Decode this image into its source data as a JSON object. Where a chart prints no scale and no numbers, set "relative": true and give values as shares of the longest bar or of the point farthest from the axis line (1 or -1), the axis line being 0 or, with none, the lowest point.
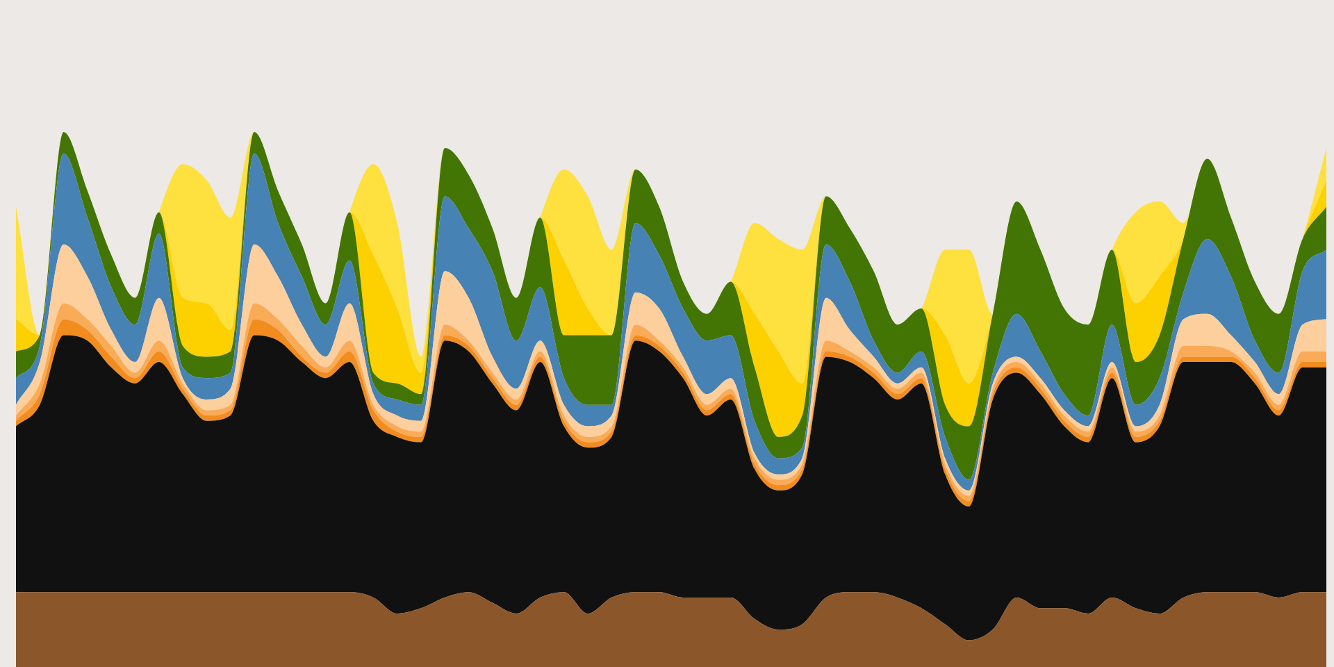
{
  "chart_data": {
    "type": "area",
    "stacked": true,
    "relative": true,
    "categories": [
      null,
      null,
      null,
      null,
      null,
      null,
      null,
      null,
      null,
      null,
      null,
      null,
      null,
      null,
      null,
      null,
      null,
      null,
      null,
      null,
      null,
      null,
      null,
      null,
      null,
      null,
      null,
      null,
      null,
      null,
      null,
      null,
      null,
      null,
      null,
      null,
      null,
      null,
      null,
      null,
      null,
      null,
      null,
      null,
      null,
      null,
      null,
      null,
      null,
      null,
      null,
      null,
      null,
      null,
      null,
      null
    ],
    "series": [
      {
        "color": "#8b572a",
        "values": [
          0.14,
          0.14,
          0.14,
          0.14,
          0.14,
          0.14,
          0.14,
          0.14,
          0.14,
          0.14,
          0.14,
          0.14,
          0.14,
          0.14,
          0.14,
          0.13,
          0.1,
          0.11,
          0.13,
          0.14,
          0.12,
          0.1,
          0.13,
          0.14,
          0.1,
          0.13,
          0.14,
          0.14,
          0.13,
          0.13,
          0.13,
          0.09,
          0.07,
          0.08,
          0.13,
          0.14,
          0.14,
          0.13,
          0.11,
          0.08,
          0.05,
          0.07,
          0.13,
          0.11,
          0.11,
          0.1,
          0.13,
          0.11,
          0.1,
          0.13,
          0.14,
          0.14,
          0.14,
          0.13,
          0.14,
          0.14
        ]
      },
      {
        "color": "#111111",
        "values": [
          0.31,
          0.35,
          0.48,
          0.47,
          0.42,
          0.39,
          0.43,
          0.37,
          0.32,
          0.33,
          0.48,
          0.47,
          0.43,
          0.4,
          0.43,
          0.33,
          0.33,
          0.31,
          0.48,
          0.45,
          0.41,
          0.38,
          0.44,
          0.31,
          0.31,
          0.3,
          0.47,
          0.45,
          0.41,
          0.34,
          0.37,
          0.28,
          0.26,
          0.28,
          0.45,
          0.43,
          0.4,
          0.37,
          0.42,
          0.28,
          0.25,
          0.43,
          0.42,
          0.4,
          0.34,
          0.32,
          0.41,
          0.31,
          0.35,
          0.44,
          0.43,
          0.43,
          0.39,
          0.34,
          0.42,
          0.42
        ]
      },
      {
        "color": "#f28c1e",
        "values": [
          0.01,
          0.02,
          0.03,
          0.02,
          0.02,
          0.01,
          0.02,
          0.01,
          0.01,
          0.01,
          0.03,
          0.02,
          0.01,
          0.01,
          0.02,
          0.02,
          0.01,
          0.01,
          0.01,
          0.01,
          0.01,
          0.01,
          0.01,
          0.01,
          0.01,
          0.01,
          0.01,
          0.01,
          0.01,
          0.01,
          0.01,
          0.01,
          0.01,
          0.01,
          0.01,
          0.01,
          0.01,
          0.01,
          0.01,
          0.01,
          0.01,
          0.01,
          0.01,
          0.01,
          0.01,
          0.01,
          0.01,
          0.01,
          0.01,
          0.01,
          0.01,
          0.01,
          0.01,
          0.01,
          0.01,
          0.01
        ]
      },
      {
        "color": "#f9ab58",
        "values": [
          0.01,
          0.02,
          0.03,
          0.02,
          0.02,
          0.01,
          0.02,
          0.01,
          0.01,
          0.01,
          0.03,
          0.02,
          0.02,
          0.01,
          0.02,
          0.01,
          0.01,
          0.01,
          0.02,
          0.01,
          0.01,
          0.01,
          0.01,
          0.01,
          0.01,
          0.01,
          0.02,
          0.01,
          0.01,
          0.01,
          0.01,
          0.01,
          0.01,
          0.01,
          0.02,
          0.01,
          0.01,
          0.01,
          0.01,
          0.01,
          0.01,
          0.01,
          0.01,
          0.01,
          0.01,
          0.01,
          0.01,
          0.01,
          0.01,
          0.02,
          0.02,
          0.01,
          0.01,
          0.01,
          0.02,
          0.02
        ]
      },
      {
        "color": "#fdcf9c",
        "values": [
          0.02,
          0.04,
          0.11,
          0.08,
          0.03,
          0.02,
          0.08,
          0.01,
          0.02,
          0.03,
          0.11,
          0.08,
          0.04,
          0.02,
          0.07,
          0.02,
          0.02,
          0.02,
          0.1,
          0.08,
          0.03,
          0.02,
          0.02,
          0.02,
          0.02,
          0.02,
          0.06,
          0.06,
          0.02,
          0.02,
          0.02,
          0.01,
          0.01,
          0.01,
          0.08,
          0.04,
          0.02,
          0.01,
          0.01,
          0.01,
          0.01,
          0.01,
          0.01,
          0.01,
          0.01,
          0.01,
          0.01,
          0.01,
          0.02,
          0.05,
          0.06,
          0.03,
          0.02,
          0.02,
          0.05,
          0.06
        ]
      },
      {
        "color": "#4682b4",
        "values": [
          0.05,
          0.03,
          0.17,
          0.11,
          0.08,
          0.07,
          0.12,
          0.02,
          0.04,
          0.03,
          0.17,
          0.1,
          0.09,
          0.06,
          0.08,
          0.02,
          0.03,
          0.03,
          0.14,
          0.13,
          0.16,
          0.09,
          0.1,
          0.05,
          0.04,
          0.02,
          0.13,
          0.1,
          0.09,
          0.1,
          0.08,
          0.06,
          0.03,
          0.02,
          0.1,
          0.09,
          0.03,
          0.02,
          0.03,
          0.04,
          0.02,
          0.02,
          0.08,
          0.05,
          0.03,
          0.02,
          0.07,
          0.04,
          0.05,
          0.05,
          0.14,
          0.11,
          0.04,
          0.04,
          0.1,
          0.13
        ]
      },
      {
        "color": "#437505",
        "values": [
          0.05,
          0.02,
          0.04,
          0.05,
          0.06,
          0.05,
          0.04,
          0.04,
          0.04,
          0.04,
          0.04,
          0.06,
          0.06,
          0.04,
          0.09,
          0.02,
          0.03,
          0.02,
          0.09,
          0.1,
          0.08,
          0.08,
          0.13,
          0.08,
          0.13,
          0.13,
          0.1,
          0.09,
          0.05,
          0.05,
          0.1,
          0.1,
          0.04,
          0.06,
          0.09,
          0.1,
          0.13,
          0.09,
          0.08,
          0.06,
          0.1,
          0.11,
          0.21,
          0.19,
          0.16,
          0.17,
          0.14,
          0.08,
          0.08,
          0.1,
          0.15,
          0.11,
          0.11,
          0.11,
          0.06,
          0.08
        ]
      },
      {
        "color": "#fdd000",
        "values": [
          0.06,
          0,
          0,
          0,
          0,
          0,
          0,
          0.09,
          0.1,
          0.04,
          0,
          0,
          0,
          0,
          0,
          0.22,
          0.14,
          0.04,
          0,
          0,
          0,
          0,
          0,
          0.14,
          0.05,
          0,
          0,
          0,
          0,
          0,
          0,
          0.1,
          0.16,
          0.06,
          0,
          0,
          0,
          0,
          0,
          0.13,
          0.08,
          0,
          0,
          0,
          0,
          0,
          0,
          0.11,
          0.11,
          0,
          0,
          0,
          0,
          0,
          0,
          0.05
        ]
      },
      {
        "color": "#fee03e",
        "values": [
          0.21,
          0,
          0,
          0,
          0,
          0,
          0,
          0.25,
          0.23,
          0.21,
          0,
          0,
          0,
          0,
          0,
          0.17,
          0.16,
          0.03,
          0,
          0,
          0,
          0,
          0,
          0.17,
          0.21,
          0.16,
          0,
          0,
          0,
          0,
          0,
          0.17,
          0.21,
          0.25,
          0,
          0,
          0,
          0,
          0,
          0.16,
          0.25,
          0,
          0,
          0,
          0,
          0,
          0,
          0.17,
          0.14,
          0.03,
          0,
          0,
          0,
          0,
          0,
          0.06
        ]
      }
    ]
  }
}
